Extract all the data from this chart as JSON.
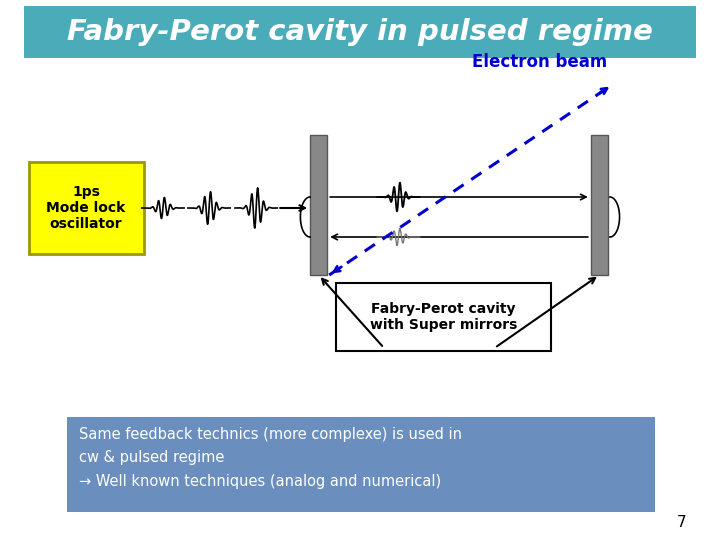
{
  "title": "Fabry-Perot cavity in pulsed regime",
  "title_bg": "#4AACB8",
  "title_color": "white",
  "electron_beam_label": "Electron beam",
  "electron_beam_color": "#0000CC",
  "oscillator_label": "1ps\nMode lock\noscillator",
  "oscillator_bg": "#FFFF00",
  "oscillator_border": "#999900",
  "fp_label": "Fabry-Perot cavity\nwith Super mirrors",
  "bottom_text": "Same feedback technics (more complexe) is used in\ncw & pulsed regime\n→ Well known techniques (analog and numerical)",
  "bottom_bg": "#6A8FBF",
  "bottom_text_color": "white",
  "page_number": "7",
  "mirror_color": "#888888",
  "mirror_edge": "#555555",
  "background_color": "white"
}
